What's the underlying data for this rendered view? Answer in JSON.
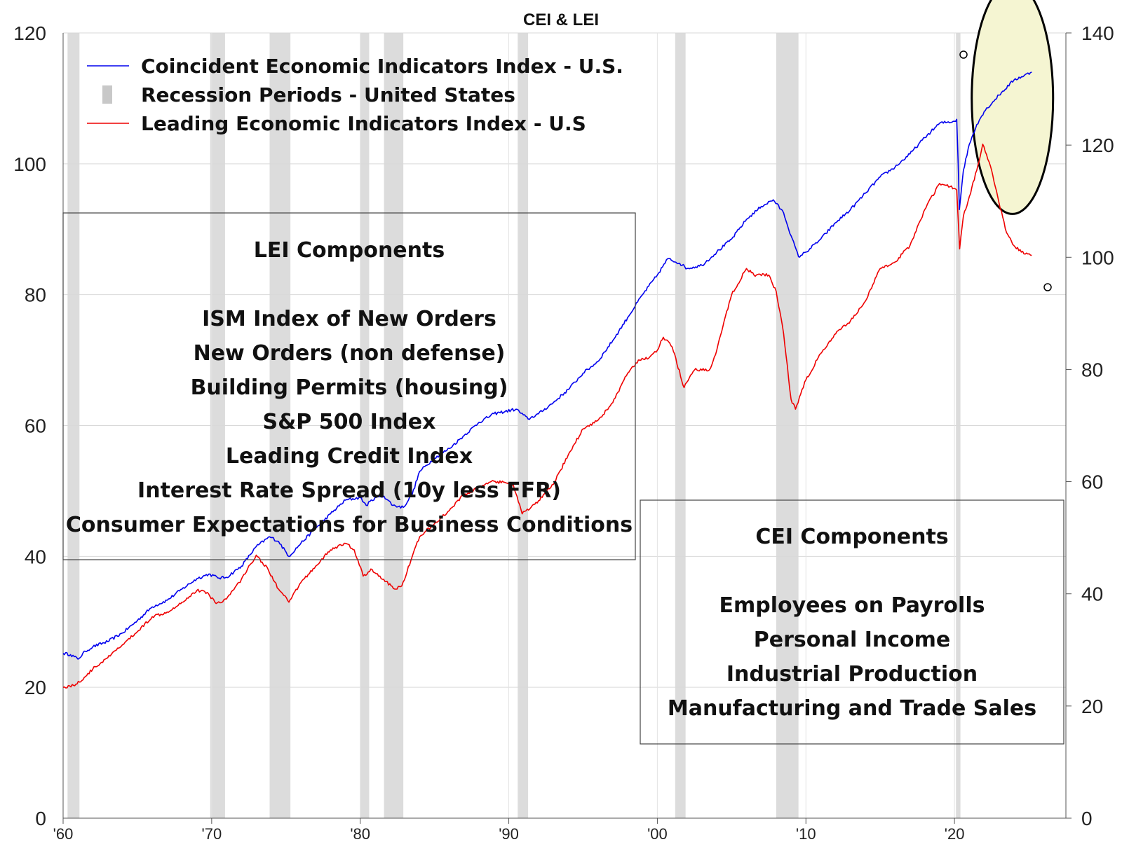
{
  "chart_data": {
    "type": "line",
    "title": "CEI & LEI",
    "x_range": [
      1960,
      2027.5
    ],
    "y_left": {
      "range": [
        0,
        120
      ],
      "ticks": [
        0,
        20,
        40,
        60,
        80,
        100,
        120
      ]
    },
    "y_right": {
      "range": [
        0,
        140
      ],
      "ticks": [
        0,
        20,
        40,
        60,
        80,
        100,
        120,
        140
      ]
    },
    "x_ticks": [
      {
        "value": 1960,
        "label": "'60"
      },
      {
        "value": 1970,
        "label": "'70"
      },
      {
        "value": 1980,
        "label": "'80"
      },
      {
        "value": 1990,
        "label": "'90"
      },
      {
        "value": 2000,
        "label": "'00"
      },
      {
        "value": 2010,
        "label": "'10"
      },
      {
        "value": 2020,
        "label": "'20"
      }
    ],
    "grid": true,
    "legend": {
      "placement": "top-left",
      "entries": [
        {
          "label": "Coincident Economic Indicators Index - U.S.",
          "kind": "line",
          "color": "#0000ee"
        },
        {
          "label": "Recession Periods - United States",
          "kind": "bar",
          "color": "#c8c8c8"
        },
        {
          "label": "Leading Economic Indicators Index - U.S",
          "kind": "line",
          "color": "#ee0000"
        }
      ]
    },
    "recessions": [
      [
        1960.3,
        1961.1
      ],
      [
        1969.9,
        1970.9
      ],
      [
        1973.9,
        1975.3
      ],
      [
        1980.0,
        1980.6
      ],
      [
        1981.6,
        1982.9
      ],
      [
        1990.6,
        1991.3
      ],
      [
        2001.2,
        2001.9
      ],
      [
        2008.0,
        2009.5
      ],
      [
        2020.1,
        2020.4
      ]
    ],
    "series": [
      {
        "name": "Coincident Economic Indicators Index - U.S.",
        "axis": "left",
        "color": "#0000ee",
        "points": [
          [
            1960.0,
            25.2
          ],
          [
            1960.5,
            25.0
          ],
          [
            1961.0,
            24.3
          ],
          [
            1961.5,
            25.5
          ],
          [
            1962,
            26.2
          ],
          [
            1963,
            27.0
          ],
          [
            1964,
            28.3
          ],
          [
            1965,
            30.2
          ],
          [
            1966,
            32.3
          ],
          [
            1967,
            33.3
          ],
          [
            1968,
            35.0
          ],
          [
            1969,
            36.6
          ],
          [
            1969.8,
            37.3
          ],
          [
            1970.5,
            36.7
          ],
          [
            1971,
            36.8
          ],
          [
            1972,
            38.5
          ],
          [
            1973,
            41.5
          ],
          [
            1973.9,
            43.0
          ],
          [
            1974.5,
            42.3
          ],
          [
            1975.2,
            40.0
          ],
          [
            1976,
            42.0
          ],
          [
            1977,
            44.3
          ],
          [
            1978,
            46.5
          ],
          [
            1979,
            48.6
          ],
          [
            1980.0,
            49.0
          ],
          [
            1980.4,
            47.8
          ],
          [
            1981,
            49.0
          ],
          [
            1981.6,
            49.2
          ],
          [
            1982.2,
            47.8
          ],
          [
            1982.9,
            47.5
          ],
          [
            1983.5,
            49.5
          ],
          [
            1984,
            53.0
          ],
          [
            1985,
            55.0
          ],
          [
            1986,
            56.5
          ],
          [
            1987,
            58.5
          ],
          [
            1988,
            60.5
          ],
          [
            1989,
            61.8
          ],
          [
            1990.5,
            62.5
          ],
          [
            1991.3,
            61.0
          ],
          [
            1992,
            61.8
          ],
          [
            1993,
            63.5
          ],
          [
            1994,
            65.5
          ],
          [
            1995,
            68.0
          ],
          [
            1996,
            69.8
          ],
          [
            1997,
            73.0
          ],
          [
            1998,
            76.5
          ],
          [
            1999,
            80.0
          ],
          [
            2000.0,
            83.0
          ],
          [
            2000.7,
            85.5
          ],
          [
            2001.5,
            84.8
          ],
          [
            2002,
            84.0
          ],
          [
            2003,
            84.5
          ],
          [
            2004,
            86.5
          ],
          [
            2005,
            88.5
          ],
          [
            2006,
            91.5
          ],
          [
            2007,
            93.5
          ],
          [
            2007.8,
            94.5
          ],
          [
            2008.5,
            92.5
          ],
          [
            2009.0,
            89.0
          ],
          [
            2009.5,
            85.8
          ],
          [
            2010,
            86.5
          ],
          [
            2011,
            88.5
          ],
          [
            2012,
            91.0
          ],
          [
            2013,
            93.0
          ],
          [
            2014,
            95.5
          ],
          [
            2015,
            98.0
          ],
          [
            2016,
            99.5
          ],
          [
            2017,
            101.5
          ],
          [
            2018,
            104.0
          ],
          [
            2019,
            106.2
          ],
          [
            2020.0,
            106.5
          ],
          [
            2020.15,
            106.8
          ],
          [
            2020.25,
            100.0
          ],
          [
            2020.33,
            93.0
          ],
          [
            2020.6,
            99.0
          ],
          [
            2021,
            103.0
          ],
          [
            2021.5,
            106.0
          ],
          [
            2022,
            108.0
          ],
          [
            2023,
            110.5
          ],
          [
            2024,
            112.8
          ],
          [
            2025.2,
            114.0
          ]
        ]
      },
      {
        "name": "Leading Economic Indicators Index - U.S",
        "axis": "left",
        "color": "#ee0000",
        "points": [
          [
            1960.0,
            20.0
          ],
          [
            1960.7,
            20.3
          ],
          [
            1961.1,
            20.8
          ],
          [
            1962,
            22.8
          ],
          [
            1963,
            24.5
          ],
          [
            1964,
            26.5
          ],
          [
            1965,
            28.5
          ],
          [
            1966,
            30.8
          ],
          [
            1967,
            31.5
          ],
          [
            1968,
            33.0
          ],
          [
            1969,
            34.8
          ],
          [
            1969.7,
            34.5
          ],
          [
            1970.3,
            32.8
          ],
          [
            1971,
            33.5
          ],
          [
            1972,
            36.5
          ],
          [
            1973.0,
            40.2
          ],
          [
            1973.8,
            38.0
          ],
          [
            1974.5,
            35.0
          ],
          [
            1975.2,
            33.0
          ],
          [
            1976,
            36.0
          ],
          [
            1977,
            38.5
          ],
          [
            1978,
            41.0
          ],
          [
            1979.0,
            42.0
          ],
          [
            1979.6,
            41.0
          ],
          [
            1980.2,
            37.0
          ],
          [
            1980.8,
            38.0
          ],
          [
            1981.5,
            36.5
          ],
          [
            1982.4,
            35.0
          ],
          [
            1982.8,
            35.5
          ],
          [
            1983.5,
            40.0
          ],
          [
            1984,
            43.0
          ],
          [
            1985,
            45.0
          ],
          [
            1986,
            47.0
          ],
          [
            1987,
            49.5
          ],
          [
            1988,
            50.5
          ],
          [
            1989,
            51.5
          ],
          [
            1990.3,
            51.0
          ],
          [
            1990.9,
            46.5
          ],
          [
            1991.5,
            47.5
          ],
          [
            1992,
            48.5
          ],
          [
            1993,
            51.0
          ],
          [
            1994,
            55.5
          ],
          [
            1995,
            59.5
          ],
          [
            1996,
            60.8
          ],
          [
            1997,
            63.5
          ],
          [
            1998,
            68.0
          ],
          [
            1998.8,
            70.0
          ],
          [
            1999.5,
            70.5
          ],
          [
            2000.0,
            71.5
          ],
          [
            2000.4,
            73.5
          ],
          [
            2001.0,
            72.0
          ],
          [
            2001.8,
            65.8
          ],
          [
            2002.5,
            68.5
          ],
          [
            2003.5,
            68.5
          ],
          [
            2004,
            71.5
          ],
          [
            2004.5,
            76.0
          ],
          [
            2005,
            80.0
          ],
          [
            2006.0,
            84.0
          ],
          [
            2006.5,
            83.0
          ],
          [
            2007.5,
            83.0
          ],
          [
            2008.0,
            80.5
          ],
          [
            2008.5,
            74.0
          ],
          [
            2009.0,
            64.0
          ],
          [
            2009.3,
            62.5
          ],
          [
            2010,
            67.0
          ],
          [
            2011,
            71.0
          ],
          [
            2012,
            74.0
          ],
          [
            2013,
            76.0
          ],
          [
            2014,
            79.0
          ],
          [
            2015,
            84.0
          ],
          [
            2016,
            85.0
          ],
          [
            2017,
            87.5
          ],
          [
            2018,
            93.0
          ],
          [
            2019.0,
            97.0
          ],
          [
            2019.7,
            96.5
          ],
          [
            2020.15,
            96.0
          ],
          [
            2020.35,
            87.0
          ],
          [
            2020.6,
            92.0
          ],
          [
            2021.0,
            95.0
          ],
          [
            2021.5,
            99.0
          ],
          [
            2021.9,
            103.0
          ],
          [
            2022.5,
            99.0
          ],
          [
            2023.0,
            94.0
          ],
          [
            2023.5,
            89.5
          ],
          [
            2024.0,
            87.5
          ],
          [
            2024.5,
            86.5
          ],
          [
            2025.2,
            86.0
          ]
        ]
      }
    ],
    "annotations": [
      {
        "kind": "ellipse",
        "fill": "#f5f5d2",
        "center": [
          2023.9,
          110.0
        ]
      }
    ],
    "text_boxes": {
      "lei": {
        "heading": "LEI Components",
        "items": [
          "ISM Index of New Orders",
          "New Orders (non defense)",
          "Building Permits (housing)",
          "S&P 500 Index",
          "Leading Credit Index",
          "Interest Rate Spread (10y less FFR)",
          "Consumer Expectations for Business Conditions"
        ]
      },
      "cei": {
        "heading": "CEI Components",
        "items": [
          "Employees on Payrolls",
          "Personal Income",
          "Industrial Production",
          "Manufacturing and Trade Sales"
        ]
      }
    }
  }
}
